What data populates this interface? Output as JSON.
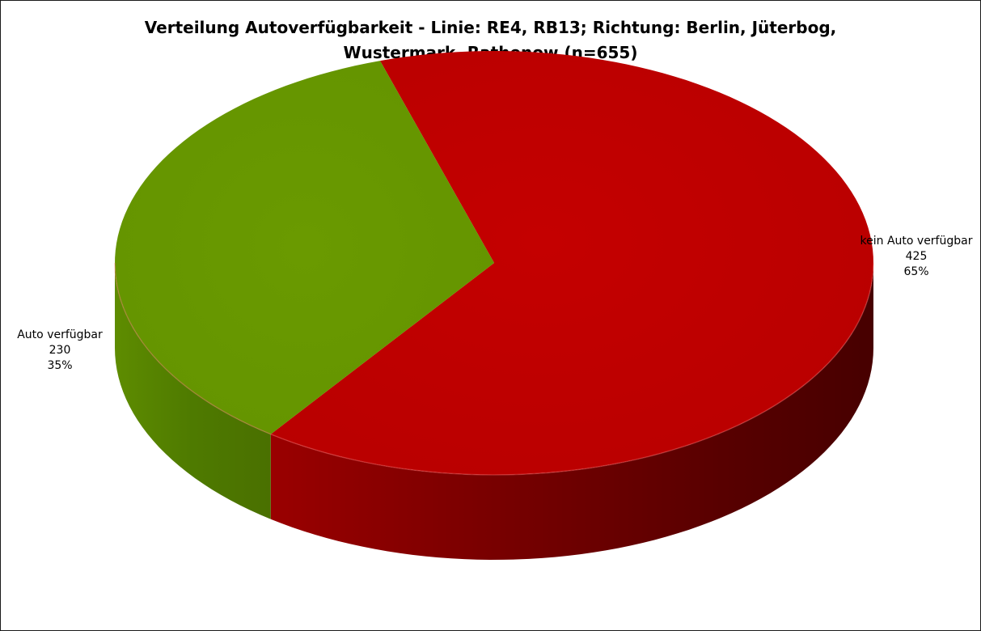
{
  "chart_data": {
    "type": "pie",
    "title_lines": [
      "Verteilung Autoverfügbarkeit - Linie: RE4, RB13; Richtung: Berlin, Jüterbog,",
      "Wustermark, Rathenow (n=655)"
    ],
    "title": "Verteilung Autoverfügbarkeit - Linie: RE4, RB13; Richtung: Berlin, Jüterbog, Wustermark, Rathenow (n=655)",
    "labels": [
      "kein Auto verfügbar",
      "Auto verfügbar"
    ],
    "values": [
      425,
      230
    ],
    "percent_labels": [
      "65%",
      "35%"
    ],
    "colors": [
      "#c00000",
      "#669900"
    ],
    "three_d": true,
    "legend": "none"
  }
}
